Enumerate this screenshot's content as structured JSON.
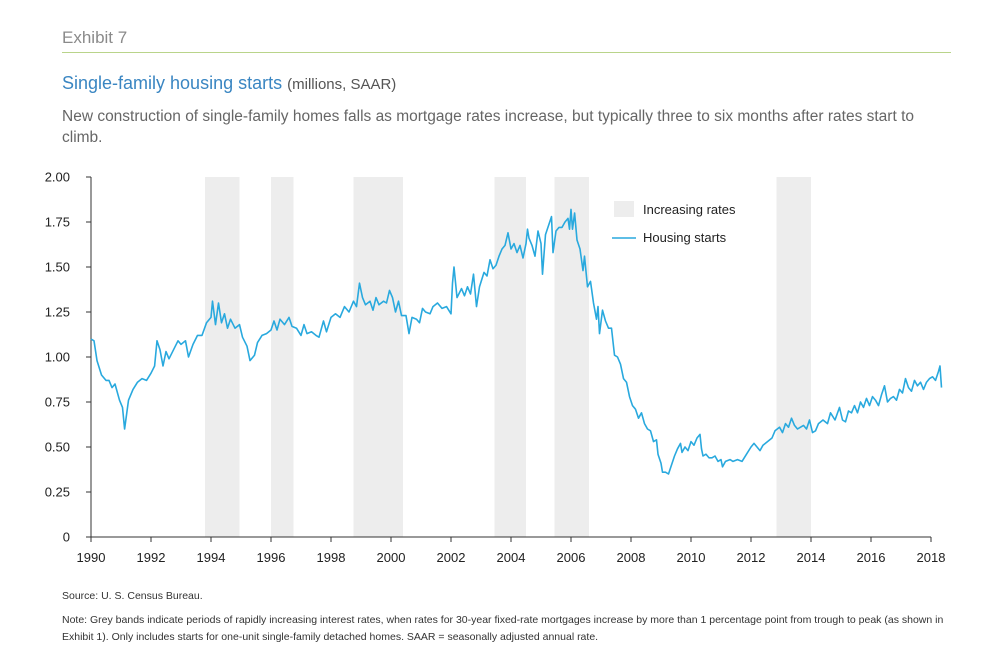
{
  "header": {
    "exhibit": "Exhibit 7",
    "title": "Single-family housing starts",
    "units": "(millions, SAAR)",
    "subtitle": "New construction of single-family homes falls as mortgage rates increase, but typically three to six months after rates start to climb."
  },
  "footer": {
    "source": "Source: U. S. Census Bureau.",
    "note": "Note: Grey bands indicate periods of rapidly increasing interest rates, when rates for 30-year fixed-rate mortgages increase by more than 1 percentage point from trough to peak (as shown in Exhibit 1). Only includes starts for one-unit single-family detached homes. SAAR = seasonally adjusted annual rate."
  },
  "chart_data": {
    "type": "line",
    "xlim": [
      1990,
      2018
    ],
    "ylim": [
      0,
      2.0
    ],
    "x_ticks": [
      1990,
      1992,
      1994,
      1996,
      1998,
      2000,
      2002,
      2004,
      2006,
      2008,
      2010,
      2012,
      2014,
      2016,
      2018
    ],
    "y_ticks": [
      "0",
      "0.25",
      "0.50",
      "0.75",
      "1.00",
      "1.25",
      "1.50",
      "1.75",
      "2.00"
    ],
    "legend": {
      "placement": "top-right",
      "band_label": "Increasing rates",
      "line_label": "Housing starts"
    },
    "band_color": "#ededed",
    "line_color": "#29a9de",
    "bands": [
      [
        1993.8,
        1994.95
      ],
      [
        1996.0,
        1996.75
      ],
      [
        1998.75,
        2000.4
      ],
      [
        2003.45,
        2004.5
      ],
      [
        2005.45,
        2006.6
      ],
      [
        2012.85,
        2014.0
      ]
    ],
    "series": [
      {
        "name": "Housing starts",
        "points": [
          [
            1990.0,
            1.1
          ],
          [
            1990.1,
            1.09
          ],
          [
            1990.2,
            0.98
          ],
          [
            1990.35,
            0.9
          ],
          [
            1990.5,
            0.87
          ],
          [
            1990.6,
            0.87
          ],
          [
            1990.7,
            0.83
          ],
          [
            1990.8,
            0.85
          ],
          [
            1990.95,
            0.76
          ],
          [
            1991.05,
            0.72
          ],
          [
            1991.12,
            0.6
          ],
          [
            1991.25,
            0.76
          ],
          [
            1991.4,
            0.82
          ],
          [
            1991.55,
            0.86
          ],
          [
            1991.7,
            0.88
          ],
          [
            1991.85,
            0.87
          ],
          [
            1992.0,
            0.91
          ],
          [
            1992.12,
            0.95
          ],
          [
            1992.2,
            1.09
          ],
          [
            1992.3,
            1.04
          ],
          [
            1992.4,
            0.95
          ],
          [
            1992.5,
            1.03
          ],
          [
            1992.6,
            0.99
          ],
          [
            1992.75,
            1.04
          ],
          [
            1992.9,
            1.09
          ],
          [
            1993.0,
            1.07
          ],
          [
            1993.15,
            1.09
          ],
          [
            1993.25,
            1.0
          ],
          [
            1993.4,
            1.07
          ],
          [
            1993.55,
            1.12
          ],
          [
            1993.7,
            1.12
          ],
          [
            1993.85,
            1.19
          ],
          [
            1994.0,
            1.22
          ],
          [
            1994.05,
            1.31
          ],
          [
            1994.15,
            1.18
          ],
          [
            1994.25,
            1.3
          ],
          [
            1994.35,
            1.19
          ],
          [
            1994.45,
            1.24
          ],
          [
            1994.55,
            1.16
          ],
          [
            1994.65,
            1.21
          ],
          [
            1994.8,
            1.16
          ],
          [
            1994.95,
            1.18
          ],
          [
            1995.05,
            1.11
          ],
          [
            1995.2,
            1.06
          ],
          [
            1995.3,
            0.98
          ],
          [
            1995.45,
            1.01
          ],
          [
            1995.55,
            1.08
          ],
          [
            1995.7,
            1.12
          ],
          [
            1995.85,
            1.13
          ],
          [
            1996.0,
            1.15
          ],
          [
            1996.1,
            1.2
          ],
          [
            1996.2,
            1.15
          ],
          [
            1996.3,
            1.21
          ],
          [
            1996.45,
            1.18
          ],
          [
            1996.6,
            1.22
          ],
          [
            1996.7,
            1.17
          ],
          [
            1996.85,
            1.16
          ],
          [
            1997.0,
            1.12
          ],
          [
            1997.1,
            1.18
          ],
          [
            1997.2,
            1.13
          ],
          [
            1997.35,
            1.14
          ],
          [
            1997.5,
            1.12
          ],
          [
            1997.6,
            1.11
          ],
          [
            1997.75,
            1.2
          ],
          [
            1997.85,
            1.14
          ],
          [
            1998.0,
            1.22
          ],
          [
            1998.15,
            1.24
          ],
          [
            1998.3,
            1.22
          ],
          [
            1998.45,
            1.28
          ],
          [
            1998.6,
            1.25
          ],
          [
            1998.75,
            1.31
          ],
          [
            1998.85,
            1.28
          ],
          [
            1998.95,
            1.41
          ],
          [
            1999.05,
            1.33
          ],
          [
            1999.15,
            1.29
          ],
          [
            1999.3,
            1.31
          ],
          [
            1999.4,
            1.26
          ],
          [
            1999.5,
            1.33
          ],
          [
            1999.6,
            1.29
          ],
          [
            1999.75,
            1.31
          ],
          [
            1999.85,
            1.3
          ],
          [
            1999.95,
            1.37
          ],
          [
            2000.05,
            1.33
          ],
          [
            2000.15,
            1.25
          ],
          [
            2000.25,
            1.31
          ],
          [
            2000.35,
            1.23
          ],
          [
            2000.5,
            1.23
          ],
          [
            2000.6,
            1.13
          ],
          [
            2000.7,
            1.22
          ],
          [
            2000.85,
            1.21
          ],
          [
            2000.95,
            1.19
          ],
          [
            2001.05,
            1.27
          ],
          [
            2001.15,
            1.25
          ],
          [
            2001.3,
            1.24
          ],
          [
            2001.4,
            1.28
          ],
          [
            2001.55,
            1.3
          ],
          [
            2001.7,
            1.27
          ],
          [
            2001.85,
            1.28
          ],
          [
            2002.0,
            1.24
          ],
          [
            2002.05,
            1.41
          ],
          [
            2002.1,
            1.5
          ],
          [
            2002.2,
            1.33
          ],
          [
            2002.35,
            1.38
          ],
          [
            2002.45,
            1.34
          ],
          [
            2002.55,
            1.39
          ],
          [
            2002.65,
            1.35
          ],
          [
            2002.75,
            1.46
          ],
          [
            2002.85,
            1.28
          ],
          [
            2002.95,
            1.39
          ],
          [
            2003.1,
            1.47
          ],
          [
            2003.2,
            1.45
          ],
          [
            2003.3,
            1.54
          ],
          [
            2003.4,
            1.49
          ],
          [
            2003.5,
            1.51
          ],
          [
            2003.6,
            1.56
          ],
          [
            2003.7,
            1.6
          ],
          [
            2003.8,
            1.62
          ],
          [
            2003.9,
            1.69
          ],
          [
            2004.0,
            1.6
          ],
          [
            2004.1,
            1.63
          ],
          [
            2004.2,
            1.58
          ],
          [
            2004.3,
            1.62
          ],
          [
            2004.4,
            1.55
          ],
          [
            2004.5,
            1.63
          ],
          [
            2004.55,
            1.71
          ],
          [
            2004.6,
            1.66
          ],
          [
            2004.7,
            1.62
          ],
          [
            2004.8,
            1.56
          ],
          [
            2004.9,
            1.7
          ],
          [
            2005.0,
            1.63
          ],
          [
            2005.05,
            1.46
          ],
          [
            2005.15,
            1.68
          ],
          [
            2005.25,
            1.73
          ],
          [
            2005.35,
            1.78
          ],
          [
            2005.4,
            1.58
          ],
          [
            2005.5,
            1.7
          ],
          [
            2005.6,
            1.72
          ],
          [
            2005.7,
            1.72
          ],
          [
            2005.8,
            1.75
          ],
          [
            2005.9,
            1.77
          ],
          [
            2005.95,
            1.71
          ],
          [
            2006.0,
            1.82
          ],
          [
            2006.05,
            1.71
          ],
          [
            2006.12,
            1.8
          ],
          [
            2006.2,
            1.65
          ],
          [
            2006.3,
            1.6
          ],
          [
            2006.4,
            1.48
          ],
          [
            2006.45,
            1.56
          ],
          [
            2006.55,
            1.39
          ],
          [
            2006.65,
            1.42
          ],
          [
            2006.75,
            1.3
          ],
          [
            2006.85,
            1.21
          ],
          [
            2006.9,
            1.28
          ],
          [
            2006.95,
            1.13
          ],
          [
            2007.05,
            1.26
          ],
          [
            2007.15,
            1.2
          ],
          [
            2007.25,
            1.16
          ],
          [
            2007.35,
            1.16
          ],
          [
            2007.45,
            1.01
          ],
          [
            2007.55,
            1.0
          ],
          [
            2007.65,
            0.96
          ],
          [
            2007.75,
            0.88
          ],
          [
            2007.85,
            0.86
          ],
          [
            2007.95,
            0.78
          ],
          [
            2008.05,
            0.73
          ],
          [
            2008.15,
            0.71
          ],
          [
            2008.25,
            0.66
          ],
          [
            2008.35,
            0.69
          ],
          [
            2008.45,
            0.63
          ],
          [
            2008.55,
            0.6
          ],
          [
            2008.65,
            0.59
          ],
          [
            2008.75,
            0.53
          ],
          [
            2008.85,
            0.54
          ],
          [
            2008.9,
            0.46
          ],
          [
            2009.0,
            0.41
          ],
          [
            2009.05,
            0.36
          ],
          [
            2009.15,
            0.36
          ],
          [
            2009.25,
            0.35
          ],
          [
            2009.35,
            0.4
          ],
          [
            2009.45,
            0.45
          ],
          [
            2009.55,
            0.49
          ],
          [
            2009.65,
            0.52
          ],
          [
            2009.7,
            0.47
          ],
          [
            2009.8,
            0.5
          ],
          [
            2009.9,
            0.48
          ],
          [
            2010.0,
            0.53
          ],
          [
            2010.1,
            0.51
          ],
          [
            2010.2,
            0.55
          ],
          [
            2010.3,
            0.57
          ],
          [
            2010.35,
            0.49
          ],
          [
            2010.4,
            0.45
          ],
          [
            2010.5,
            0.46
          ],
          [
            2010.6,
            0.44
          ],
          [
            2010.7,
            0.44
          ],
          [
            2010.8,
            0.45
          ],
          [
            2010.9,
            0.42
          ],
          [
            2011.0,
            0.43
          ],
          [
            2011.05,
            0.39
          ],
          [
            2011.15,
            0.42
          ],
          [
            2011.3,
            0.43
          ],
          [
            2011.4,
            0.42
          ],
          [
            2011.55,
            0.43
          ],
          [
            2011.7,
            0.42
          ],
          [
            2011.85,
            0.46
          ],
          [
            2012.0,
            0.5
          ],
          [
            2012.1,
            0.52
          ],
          [
            2012.2,
            0.5
          ],
          [
            2012.3,
            0.48
          ],
          [
            2012.4,
            0.51
          ],
          [
            2012.55,
            0.53
          ],
          [
            2012.7,
            0.55
          ],
          [
            2012.8,
            0.59
          ],
          [
            2012.95,
            0.61
          ],
          [
            2013.05,
            0.58
          ],
          [
            2013.15,
            0.63
          ],
          [
            2013.25,
            0.61
          ],
          [
            2013.35,
            0.66
          ],
          [
            2013.45,
            0.62
          ],
          [
            2013.55,
            0.6
          ],
          [
            2013.65,
            0.61
          ],
          [
            2013.75,
            0.62
          ],
          [
            2013.85,
            0.6
          ],
          [
            2013.95,
            0.65
          ],
          [
            2014.05,
            0.58
          ],
          [
            2014.15,
            0.59
          ],
          [
            2014.25,
            0.63
          ],
          [
            2014.4,
            0.65
          ],
          [
            2014.55,
            0.63
          ],
          [
            2014.65,
            0.69
          ],
          [
            2014.8,
            0.65
          ],
          [
            2014.95,
            0.72
          ],
          [
            2015.05,
            0.65
          ],
          [
            2015.15,
            0.64
          ],
          [
            2015.25,
            0.7
          ],
          [
            2015.35,
            0.69
          ],
          [
            2015.45,
            0.73
          ],
          [
            2015.55,
            0.69
          ],
          [
            2015.65,
            0.75
          ],
          [
            2015.75,
            0.72
          ],
          [
            2015.85,
            0.77
          ],
          [
            2015.95,
            0.73
          ],
          [
            2016.05,
            0.78
          ],
          [
            2016.15,
            0.76
          ],
          [
            2016.25,
            0.73
          ],
          [
            2016.35,
            0.79
          ],
          [
            2016.45,
            0.84
          ],
          [
            2016.55,
            0.75
          ],
          [
            2016.65,
            0.77
          ],
          [
            2016.75,
            0.78
          ],
          [
            2016.85,
            0.76
          ],
          [
            2016.95,
            0.82
          ],
          [
            2017.05,
            0.8
          ],
          [
            2017.15,
            0.88
          ],
          [
            2017.25,
            0.83
          ],
          [
            2017.35,
            0.81
          ],
          [
            2017.45,
            0.87
          ],
          [
            2017.55,
            0.84
          ],
          [
            2017.65,
            0.86
          ],
          [
            2017.75,
            0.82
          ],
          [
            2017.85,
            0.86
          ],
          [
            2017.95,
            0.88
          ],
          [
            2018.05,
            0.89
          ],
          [
            2018.15,
            0.87
          ],
          [
            2018.25,
            0.92
          ],
          [
            2018.3,
            0.95
          ],
          [
            2018.35,
            0.83
          ]
        ]
      }
    ]
  }
}
